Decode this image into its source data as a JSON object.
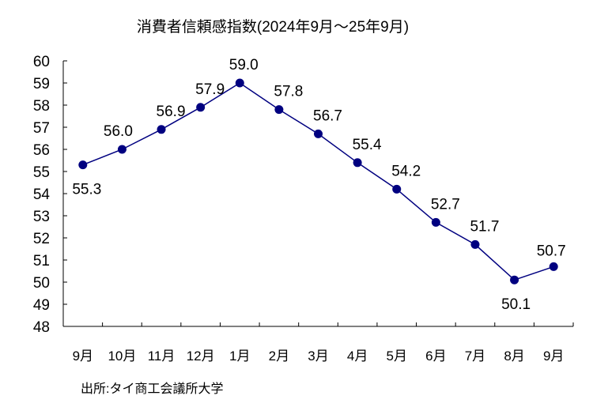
{
  "chart_data": {
    "type": "line",
    "title": "消費者信頼感指数(2024年9月～25年9月)",
    "categories": [
      "9月",
      "10月",
      "11月",
      "12月",
      "1月",
      "2月",
      "3月",
      "4月",
      "5月",
      "6月",
      "7月",
      "8月",
      "9月"
    ],
    "series": [
      {
        "values": [
          55.3,
          56.0,
          56.9,
          57.9,
          59.0,
          57.8,
          56.7,
          55.4,
          54.2,
          52.7,
          51.7,
          50.1,
          50.7
        ],
        "color": "#000080"
      }
    ],
    "data_labels": [
      "55.3",
      "56.0",
      "56.9",
      "57.9",
      "59.0",
      "57.8",
      "56.7",
      "55.4",
      "54.2",
      "52.7",
      "51.7",
      "50.1",
      "50.7"
    ],
    "ylim": [
      48,
      60
    ],
    "yticks": [
      48,
      49,
      50,
      51,
      52,
      53,
      54,
      55,
      56,
      57,
      58,
      59,
      60
    ],
    "grid": false,
    "legend": "none",
    "xlabel": "",
    "ylabel": ""
  },
  "source": "出所:タイ商工会議所大学"
}
